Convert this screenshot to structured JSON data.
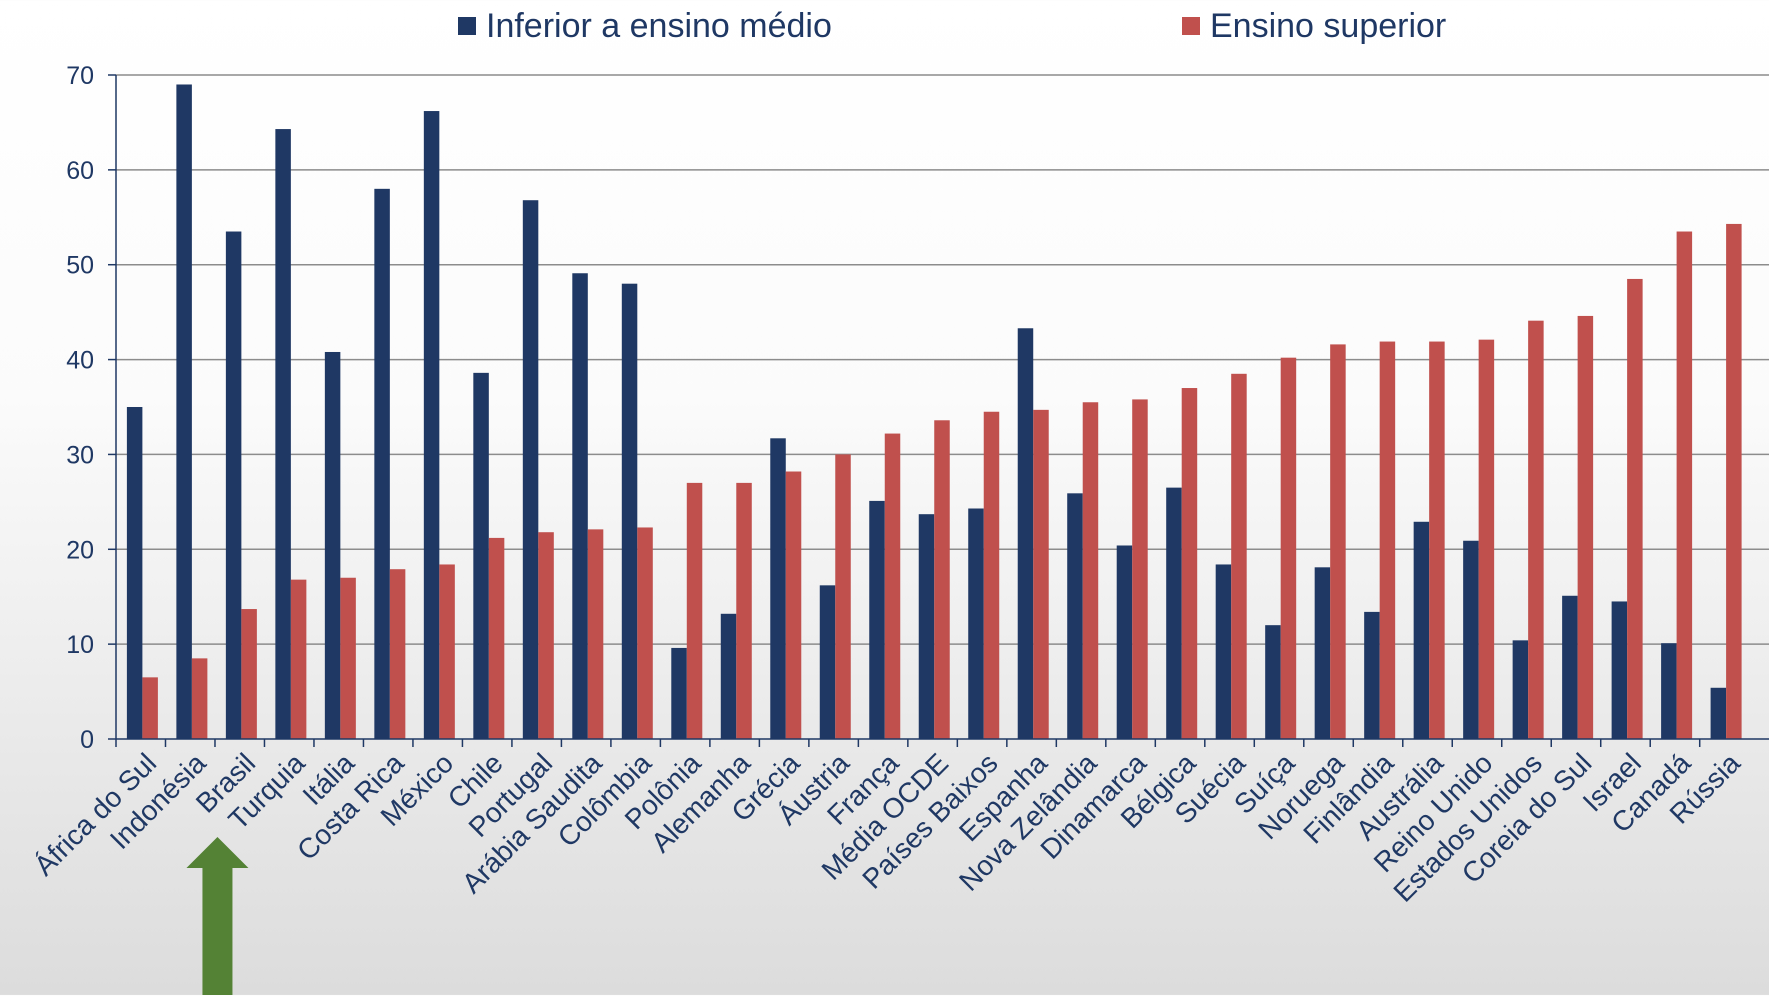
{
  "chart_data": {
    "type": "bar",
    "title": "",
    "xlabel": "",
    "ylabel": "",
    "ylim": [
      0,
      70
    ],
    "yticks": [
      0,
      10,
      20,
      30,
      40,
      50,
      60,
      70
    ],
    "grid": true,
    "legend_position": "top",
    "categories": [
      "África do Sul",
      "Indonésia",
      "Brasil",
      "Turquia",
      "Itália",
      "Costa Rica",
      "México",
      "Chile",
      "Portugal",
      "Arábia Saudita",
      "Colômbia",
      "Polônia",
      "Alemanha",
      "Grécia",
      "Áustria",
      "França",
      "Média OCDE",
      "Países Baixos",
      "Espanha",
      "Nova Zelândia",
      "Dinamarca",
      "Bélgica",
      "Suécia",
      "Suíça",
      "Noruega",
      "Finlândia",
      "Austrália",
      "Reino Unido",
      "Estados Unidos",
      "Coreia do Sul",
      "Israel",
      "Canadá",
      "Rússia"
    ],
    "series": [
      {
        "name": "Inferior a ensino médio",
        "color": "#1f3864",
        "values": [
          35.0,
          69.0,
          53.5,
          64.3,
          40.8,
          58.0,
          66.2,
          38.6,
          56.8,
          49.1,
          48.0,
          9.6,
          13.2,
          31.7,
          16.2,
          25.1,
          23.7,
          24.3,
          43.3,
          25.9,
          20.4,
          26.5,
          18.4,
          12.0,
          18.1,
          13.4,
          22.9,
          20.9,
          10.4,
          15.1,
          14.5,
          10.1,
          5.4
        ]
      },
      {
        "name": "Ensino superior",
        "color": "#c0504d",
        "values": [
          6.5,
          8.5,
          13.7,
          16.8,
          17.0,
          17.9,
          18.4,
          21.2,
          21.8,
          22.1,
          22.3,
          27.0,
          27.0,
          28.2,
          30.0,
          32.2,
          33.6,
          34.5,
          34.7,
          35.5,
          35.8,
          37.0,
          38.5,
          40.2,
          41.6,
          41.9,
          41.9,
          42.1,
          44.1,
          44.6,
          48.5,
          53.5,
          54.3
        ]
      }
    ]
  },
  "annotations": {
    "arrow_color": "#548235",
    "arrow_target": "Brasil"
  }
}
